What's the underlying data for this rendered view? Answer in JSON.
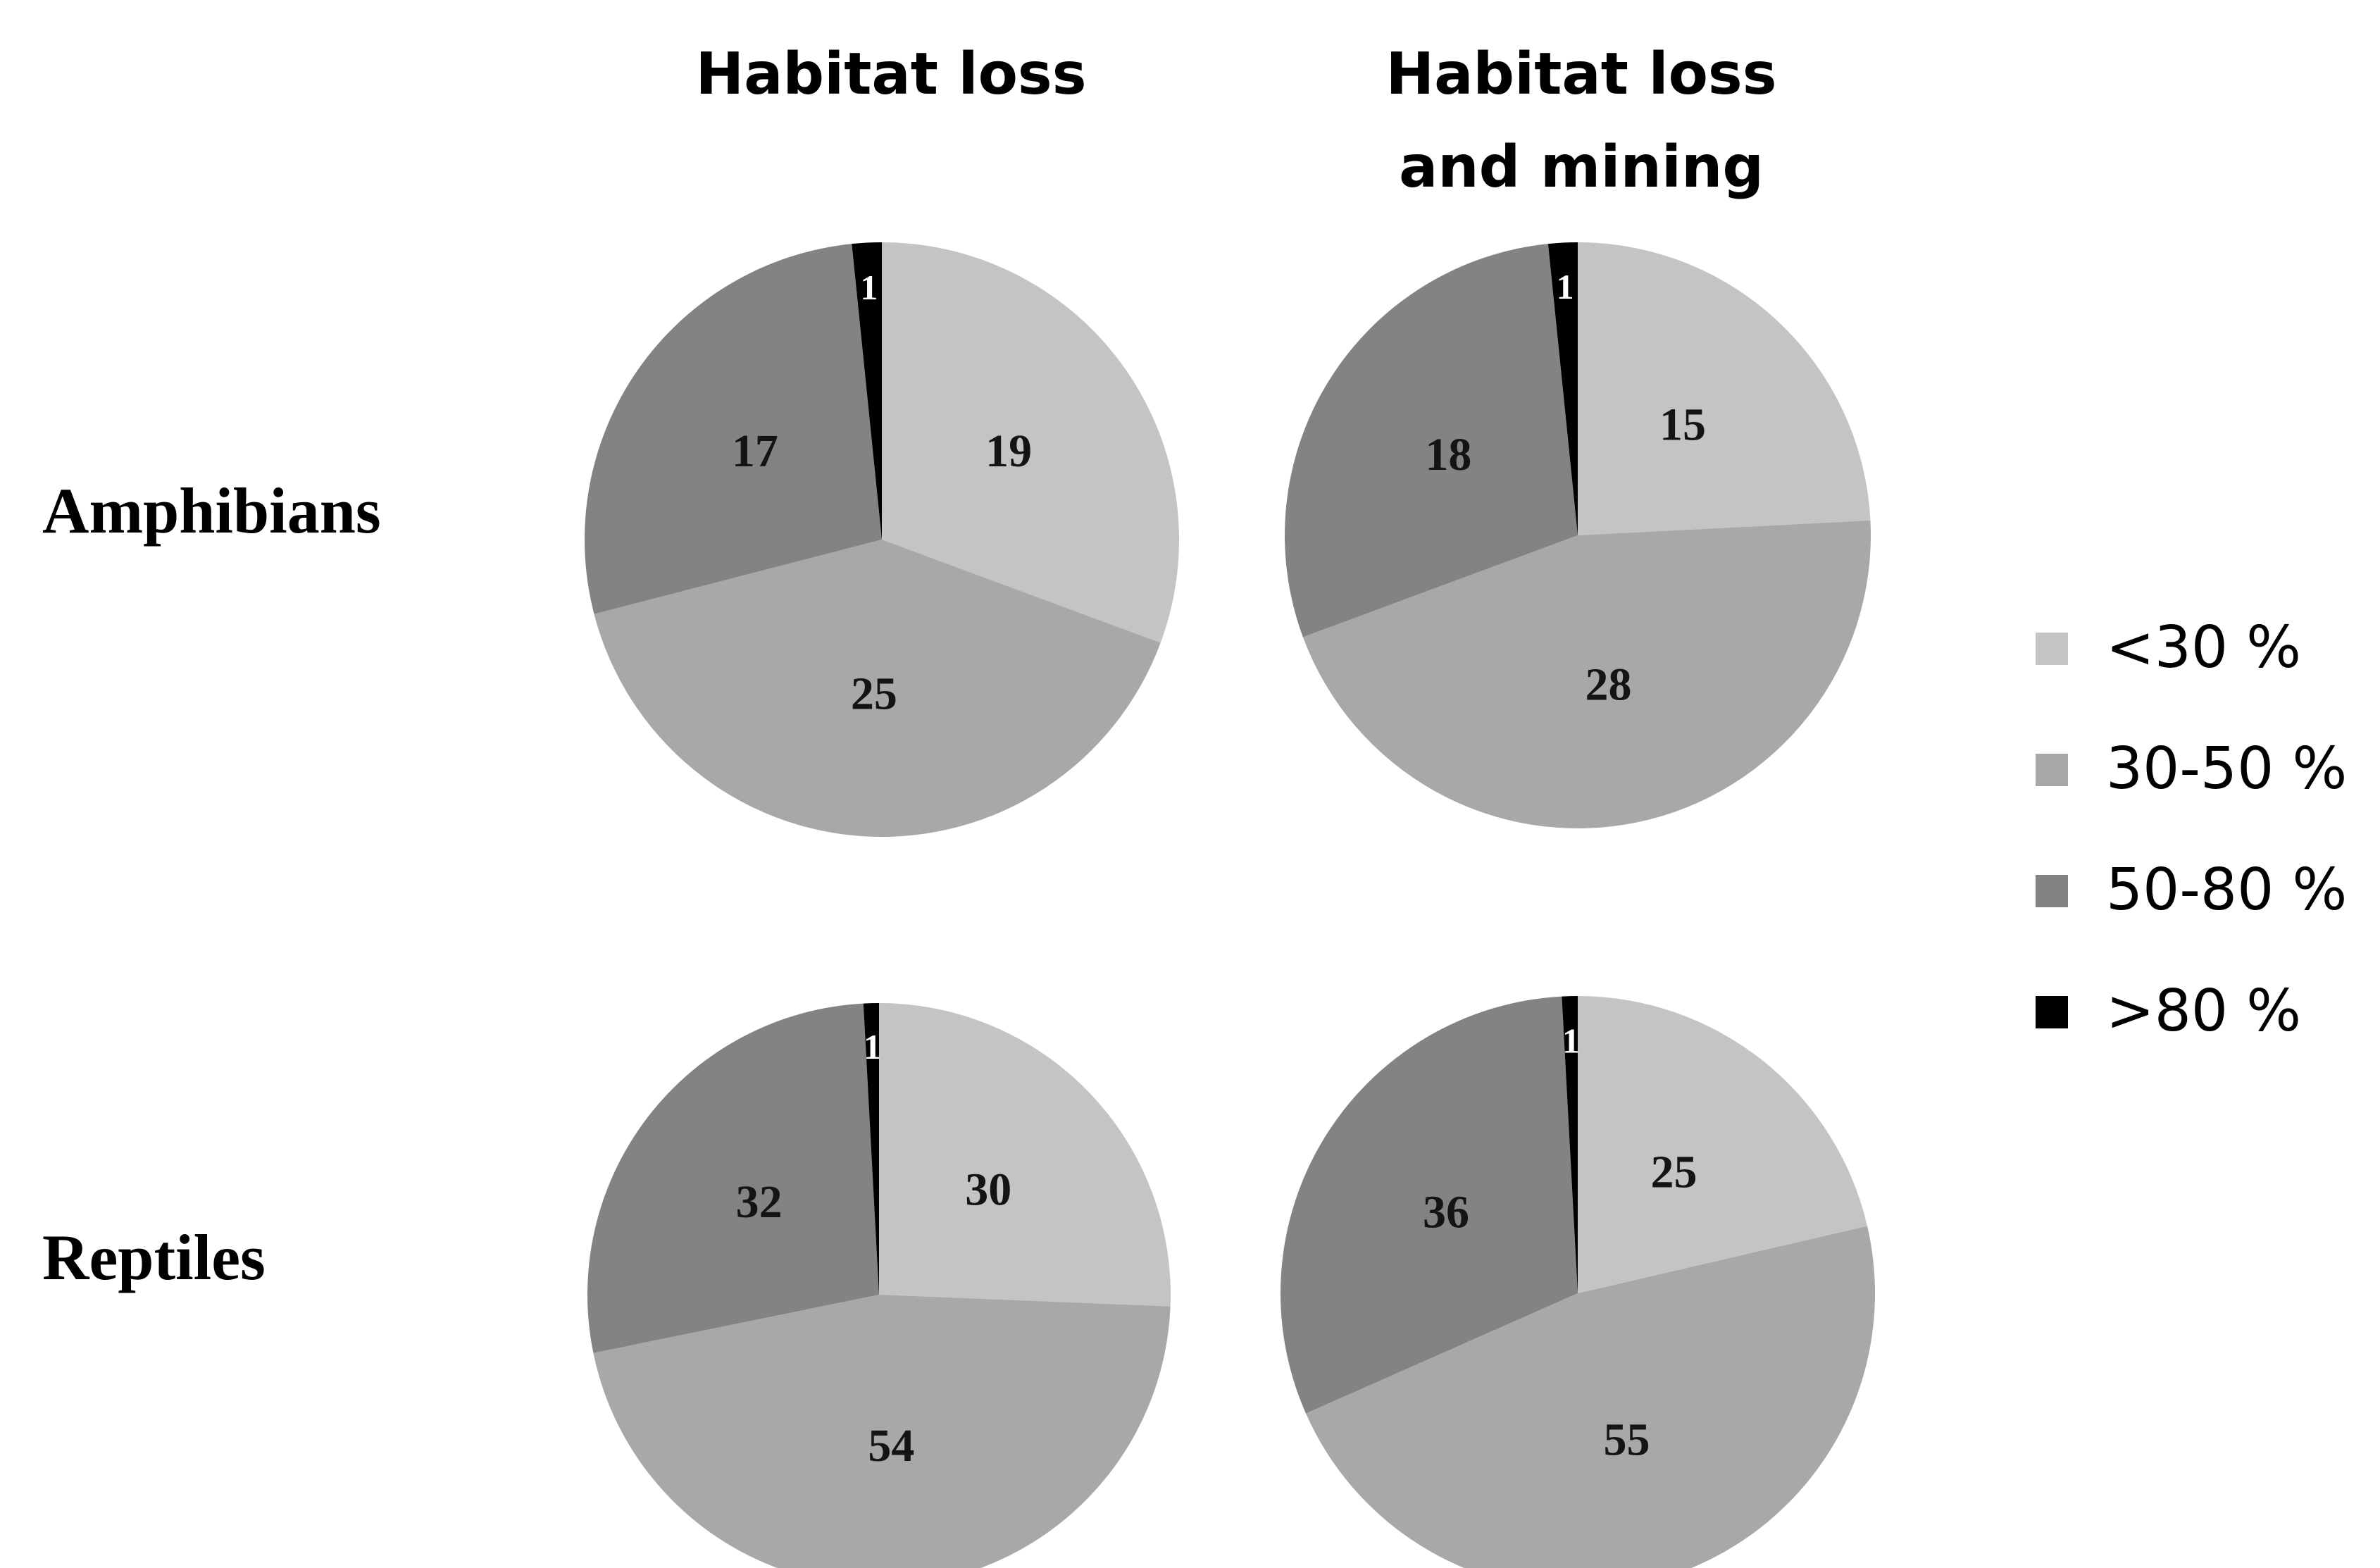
{
  "chart_data": {
    "type": "pie",
    "columns": [
      {
        "title_lines": [
          "Habitat loss"
        ]
      },
      {
        "title_lines": [
          "Habitat loss",
          "and mining"
        ]
      }
    ],
    "rows": [
      "Amphibians",
      "Reptiles"
    ],
    "legend": [
      {
        "label": "<30 %",
        "color": "#c4c4c4"
      },
      {
        "label": "30-50 %",
        "color": "#a8a8a8"
      },
      {
        "label": "50-80 %",
        "color": "#838383"
      },
      {
        "label": ">80 %",
        "color": "#000000"
      }
    ],
    "legend_position": "right",
    "charts": [
      {
        "row": "Amphibians",
        "column": "Habitat loss",
        "values": [
          19,
          25,
          17,
          1
        ]
      },
      {
        "row": "Amphibians",
        "column": "Habitat loss and mining",
        "values": [
          15,
          28,
          18,
          1
        ]
      },
      {
        "row": "Reptiles",
        "column": "Habitat loss",
        "values": [
          30,
          54,
          32,
          1
        ]
      },
      {
        "row": "Reptiles",
        "column": "Habitat loss and mining",
        "values": [
          25,
          55,
          36,
          1
        ]
      }
    ]
  }
}
